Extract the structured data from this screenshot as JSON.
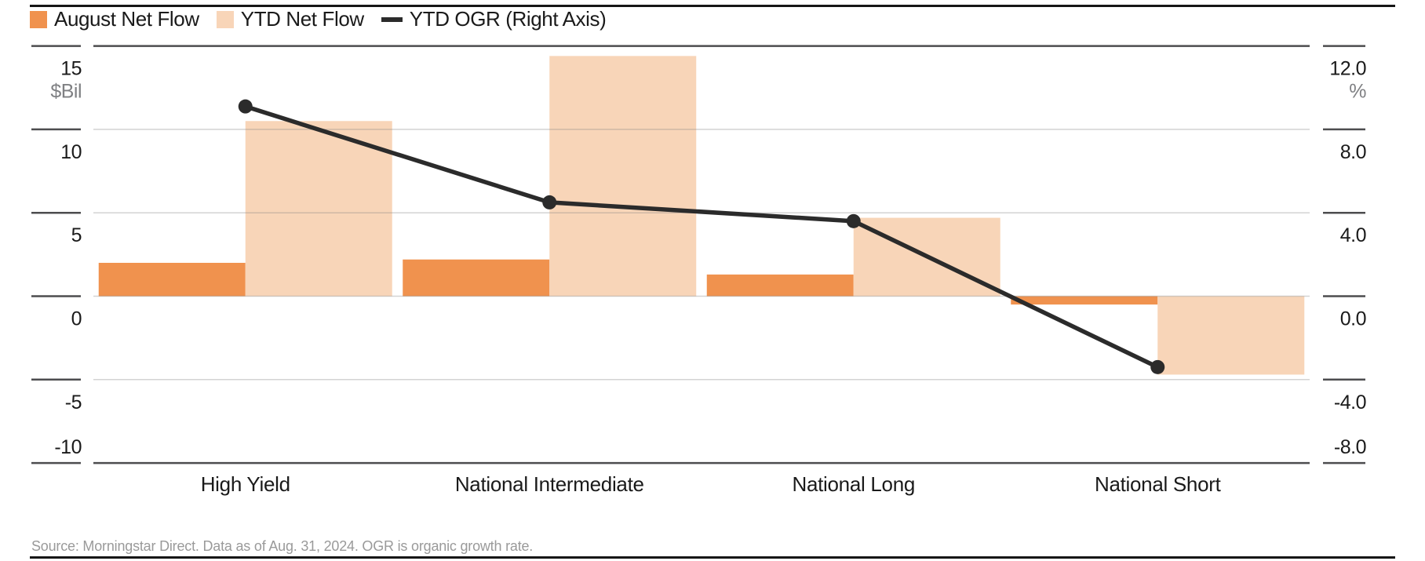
{
  "legend": {
    "items": [
      {
        "label": "August Net Flow",
        "swatch": "square",
        "color": "#F0924E"
      },
      {
        "label": "YTD Net Flow",
        "swatch": "square",
        "color": "#F8D5B8"
      },
      {
        "label": "YTD OGR (Right Axis)",
        "swatch": "dash",
        "color": "#2B2B2B"
      }
    ]
  },
  "chart_data": {
    "type": "bar",
    "subtype": "grouped bars with overlaid line on secondary axis",
    "categories": [
      "High Yield",
      "National Intermediate",
      "National Long",
      "National Short"
    ],
    "series": [
      {
        "name": "August Net Flow",
        "type": "bar",
        "axis": "left",
        "color": "#F0924E",
        "values": [
          2.0,
          2.2,
          1.3,
          -0.5
        ]
      },
      {
        "name": "YTD Net Flow",
        "type": "bar",
        "axis": "left",
        "color": "#F8D5B8",
        "values": [
          10.5,
          14.4,
          4.7,
          -4.7
        ]
      },
      {
        "name": "YTD OGR (Right Axis)",
        "type": "line",
        "axis": "right",
        "color": "#2B2B2B",
        "values": [
          9.1,
          4.5,
          3.6,
          -3.4
        ]
      }
    ],
    "left_axis": {
      "unit": "$Bil",
      "ticks": [
        15,
        10,
        5,
        0,
        -5,
        -10
      ],
      "tick_labels": [
        "15",
        "10",
        "5",
        "0",
        "-5",
        "-10"
      ],
      "range": [
        -10,
        15
      ]
    },
    "right_axis": {
      "unit": "%",
      "ticks": [
        12,
        8,
        4,
        0,
        -4,
        -8
      ],
      "tick_labels": [
        "12.0",
        "8.0",
        "4.0",
        "0.0",
        "-4.0",
        "-8.0"
      ],
      "range": [
        -8,
        12
      ]
    },
    "grid": true,
    "legend_position": "top",
    "title": ""
  },
  "colors": {
    "august_bar": "#F0924E",
    "ytd_bar": "#F8D5B8",
    "ogr_line": "#2B2B2B",
    "axis_dark": "#4d4d4f",
    "gridline": "#d9d9d9",
    "tick_text": "#1a1a1a",
    "unit_text": "#7f8083",
    "source_text": "#9a9a9a"
  },
  "source_note": "Source: Morningstar Direct. Data as of Aug. 31, 2024. OGR is organic growth rate."
}
